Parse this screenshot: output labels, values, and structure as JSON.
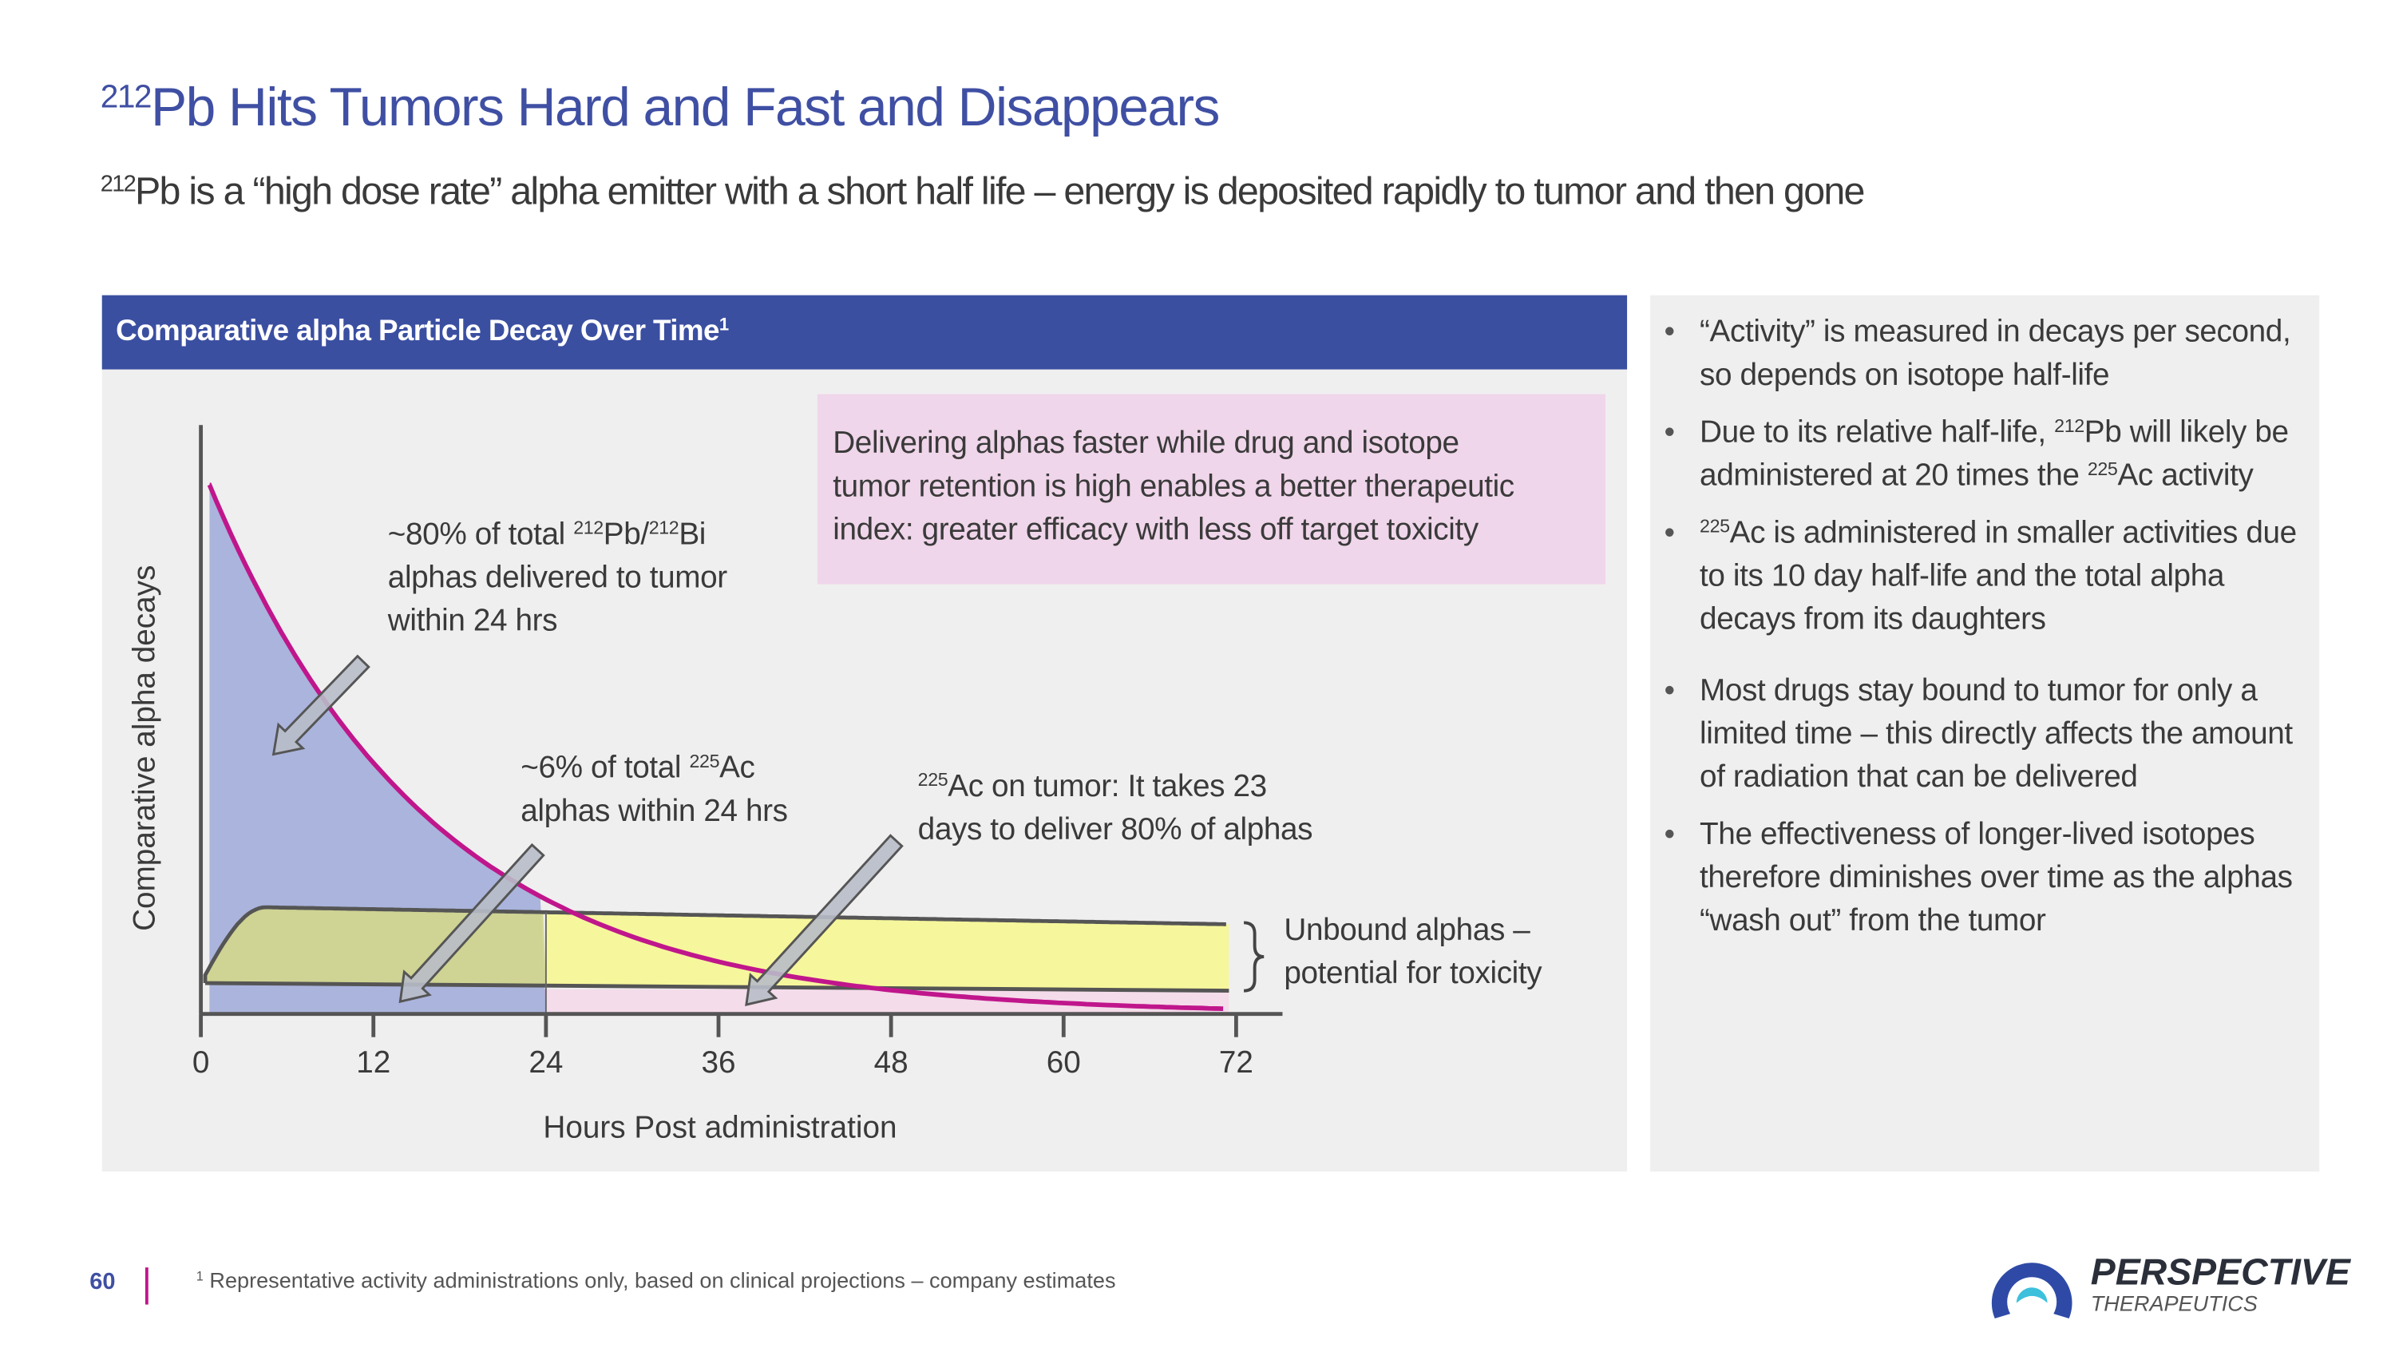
{
  "title": {
    "sup": "212",
    "text": "Pb Hits Tumors Hard and Fast and Disappears"
  },
  "subtitle": {
    "sup": "212",
    "text": "Pb is a “high dose rate” alpha emitter with a short half life – energy is deposited rapidly to tumor and then gone"
  },
  "chart_header": {
    "text": "Comparative alpha Particle Decay Over Time",
    "sup": "1"
  },
  "message_box": {
    "lines": [
      "Delivering alphas faster while drug and isotope",
      "tumor retention is high enables a better therapeutic",
      "index: greater efficacy with less off target toxicity"
    ]
  },
  "annotations": {
    "pb": {
      "l1_pre": "~80% of total ",
      "sup1": "212",
      "mid": "Pb/",
      "sup2": "212",
      "post": "Bi",
      "l2": "alphas delivered to tumor",
      "l3": "within 24 hrs"
    },
    "ac6": {
      "pre": "~6% of total ",
      "sup": "225",
      "post": "Ac",
      "l2": "alphas within 24 hrs"
    },
    "ac23": {
      "sup": "225",
      "post": "Ac on tumor: It takes 23",
      "l2": "days to deliver 80% of alphas"
    },
    "unbound": {
      "l1": "Unbound alphas –",
      "l2": "potential for toxicity"
    }
  },
  "chart_data": {
    "type": "area",
    "xlabel": "Hours Post administration",
    "ylabel": "Comparative alpha decays",
    "xticks": [
      0,
      12,
      24,
      36,
      48,
      60,
      72
    ],
    "xlim": [
      0,
      72
    ],
    "grid": false,
    "colors": {
      "pb_curve": "#c0168c",
      "pb_area": "#aab4dc",
      "ac_band": "#f6f69c",
      "ac_band_24h": "#d3d68c",
      "tumor_strip": "#e3a6d4",
      "tumor_strip_after": "#f4dcea",
      "arrow": "#b8bcc8"
    }
  },
  "bullets": {
    "b1": {
      "text": "“Activity” is measured in decays per second, so depends on isotope half-life"
    },
    "b2": {
      "pre": "Due to its relative half-life, ",
      "sup1": "212",
      "mid": "Pb will likely be administered at 20 times the ",
      "sup2": "225",
      "post": "Ac activity"
    },
    "b3": {
      "sup": "225",
      "post": "Ac is administered in smaller activities due to its 10 day half-life and the total alpha decays from its daughters"
    },
    "b4": {
      "text": "Most drugs stay bound to tumor for only a limited time – this directly affects the amount of radiation that can be delivered"
    },
    "b5": {
      "text": "The effectiveness of longer-lived isotopes therefore diminishes over time as the alphas “wash out” from the tumor"
    }
  },
  "footer": {
    "page": "60",
    "footnote_sup": "1",
    "footnote": "Representative activity administrations only, based on clinical projections – company estimates"
  },
  "logo": {
    "name": "PERSPECTIVE",
    "sub": "THERAPEUTICS",
    "colors": {
      "arc": "#2f4aa6",
      "dot": "#3cc0dc",
      "text": "#2a2f3a",
      "accent": "#c0169c"
    }
  }
}
